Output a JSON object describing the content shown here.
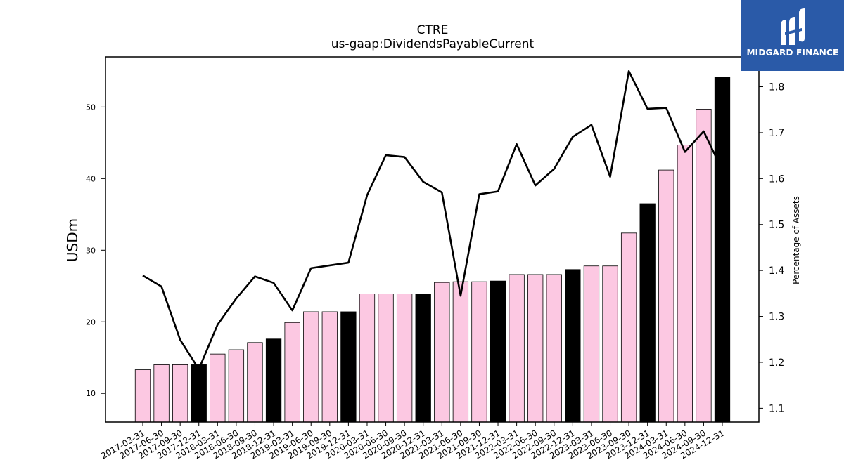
{
  "logo": {
    "text": "MIDGARD FINANCE"
  },
  "chart_data": {
    "type": "bar",
    "title": "CTRE",
    "subtitle": "us-gaap:DividendsPayableCurrent",
    "ylabel": "USDm",
    "y2label": "Percentage of Assets",
    "ylim": [
      6,
      57
    ],
    "y2lim": [
      1.07,
      1.865
    ],
    "yticks": [
      10,
      20,
      30,
      40,
      50
    ],
    "y2ticks": [
      1.1,
      1.2,
      1.3,
      1.4,
      1.5,
      1.6,
      1.7,
      1.8
    ],
    "categories": [
      "2017-03-31",
      "2017-06-30",
      "2017-09-30",
      "2017-12-31",
      "2018-03-31",
      "2018-06-30",
      "2018-09-30",
      "2018-12-31",
      "2019-03-31",
      "2019-06-30",
      "2019-09-30",
      "2019-12-31",
      "2020-03-31",
      "2020-06-30",
      "2020-09-30",
      "2020-12-31",
      "2021-03-31",
      "2021-06-30",
      "2021-09-30",
      "2021-12-31",
      "2022-03-31",
      "2022-06-30",
      "2022-09-30",
      "2022-12-31",
      "2023-03-31",
      "2023-06-30",
      "2023-09-30",
      "2023-12-31",
      "2024-03-31",
      "2024-06-30",
      "2024-09-30",
      "2024-12-31"
    ],
    "series": [
      {
        "type": "bar",
        "values": [
          13.3,
          14.0,
          14.0,
          14.0,
          15.5,
          16.1,
          17.1,
          17.6,
          19.9,
          21.4,
          21.4,
          21.4,
          23.9,
          23.9,
          23.9,
          23.9,
          25.5,
          25.6,
          25.6,
          25.7,
          26.6,
          26.6,
          26.6,
          27.3,
          27.8,
          27.8,
          32.4,
          36.5,
          41.2,
          44.7,
          49.7,
          54.2
        ],
        "colors": [
          "#fcc8e2",
          "#fcc8e2",
          "#fcc8e2",
          "#000000",
          "#fcc8e2",
          "#fcc8e2",
          "#fcc8e2",
          "#000000",
          "#fcc8e2",
          "#fcc8e2",
          "#fcc8e2",
          "#000000",
          "#fcc8e2",
          "#fcc8e2",
          "#fcc8e2",
          "#000000",
          "#fcc8e2",
          "#fcc8e2",
          "#fcc8e2",
          "#000000",
          "#fcc8e2",
          "#fcc8e2",
          "#fcc8e2",
          "#000000",
          "#fcc8e2",
          "#fcc8e2",
          "#fcc8e2",
          "#000000",
          "#fcc8e2",
          "#fcc8e2",
          "#fcc8e2",
          "#000000"
        ]
      },
      {
        "type": "line",
        "axis": "right",
        "color": "#000000",
        "values": [
          1.389,
          1.365,
          1.249,
          1.185,
          1.282,
          1.339,
          1.387,
          1.373,
          1.313,
          1.405,
          1.411,
          1.417,
          1.564,
          1.651,
          1.647,
          1.593,
          1.57,
          1.345,
          1.566,
          1.572,
          1.675,
          1.585,
          1.621,
          1.691,
          1.717,
          1.604,
          1.834,
          1.752,
          1.754,
          1.658,
          1.703,
          1.618
        ]
      }
    ],
    "grid": false,
    "legend": "none"
  }
}
